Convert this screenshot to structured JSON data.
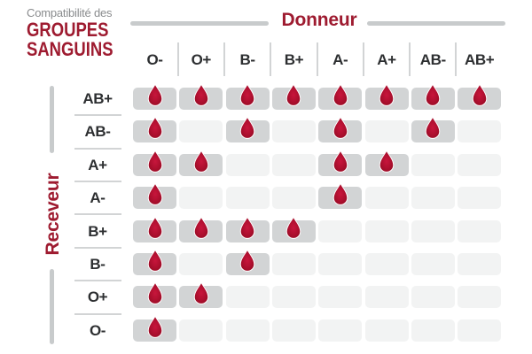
{
  "title": {
    "eyebrow": "Compatibilité des",
    "line1": "GROUPES",
    "line2": "SANGUINS"
  },
  "donor_header": {
    "label": "Donneur"
  },
  "recipient_header": {
    "label": "Receveur"
  },
  "chart_data": {
    "type": "heatmap",
    "title": "Compatibilité des groupes sanguins",
    "x_axis": {
      "label": "Donneur",
      "categories": [
        "O-",
        "O+",
        "B-",
        "B+",
        "A-",
        "A+",
        "AB-",
        "AB+"
      ]
    },
    "y_axis": {
      "label": "Receveur",
      "categories": [
        "AB+",
        "AB-",
        "A+",
        "A-",
        "B+",
        "B-",
        "O+",
        "O-"
      ]
    },
    "values_meaning": "1 = compatible (blood drop shown on dark cell), 0 = incompatible (empty light cell)",
    "matrix": [
      [
        1,
        1,
        1,
        1,
        1,
        1,
        1,
        1
      ],
      [
        1,
        0,
        1,
        0,
        1,
        0,
        1,
        0
      ],
      [
        1,
        1,
        0,
        0,
        1,
        1,
        0,
        0
      ],
      [
        1,
        0,
        0,
        0,
        1,
        0,
        0,
        0
      ],
      [
        1,
        1,
        1,
        1,
        0,
        0,
        0,
        0
      ],
      [
        1,
        0,
        1,
        0,
        0,
        0,
        0,
        0
      ],
      [
        1,
        1,
        0,
        0,
        0,
        0,
        0,
        0
      ],
      [
        1,
        0,
        0,
        0,
        0,
        0,
        0,
        0
      ]
    ]
  },
  "icons": {
    "compatible_marker": "blood-drop-icon"
  },
  "colors": {
    "accent_red": "#9e1b30",
    "drop_center": "#c8163c",
    "drop_edge": "#960c24",
    "cell_filled": "#d2d4d5",
    "cell_empty": "#f2f3f3",
    "axis_line_gray": "#c8cbcc",
    "separator_gray": "#d2d4d5",
    "header_text": "#2d2f31",
    "eyebrow_gray": "#8a8c8e",
    "background": "#ffffff"
  }
}
